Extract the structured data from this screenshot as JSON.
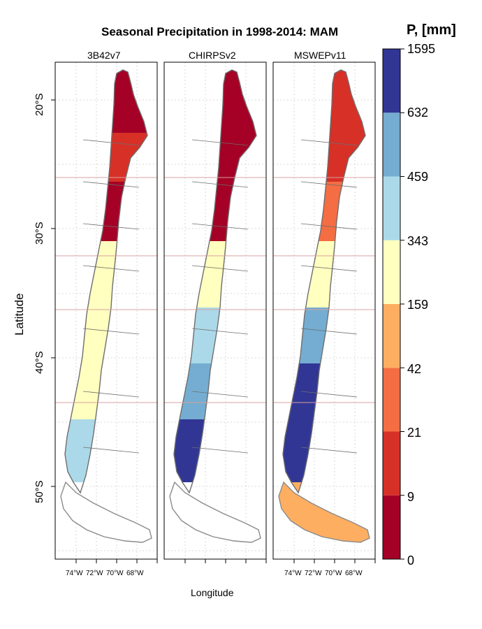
{
  "title": "Seasonal Precipitation in 1998-2014: MAM",
  "colorbar": {
    "unit_label": "P, [mm]",
    "breaks": [
      "0",
      "9",
      "21",
      "42",
      "159",
      "343",
      "459",
      "632",
      "1595"
    ],
    "colors": [
      "#a50026",
      "#d73027",
      "#f46d43",
      "#fdae61",
      "#ffffbf",
      "#abd9e9",
      "#74add1",
      "#313695"
    ]
  },
  "axes": {
    "xlabel": "Longitude",
    "ylabel": "Latitude",
    "lat_ticks": [
      "20°S",
      "30°S",
      "40°S",
      "50°S"
    ],
    "lon_ticks": [
      "74°W",
      "72°W",
      "70°W",
      "68°W"
    ]
  },
  "panels": [
    {
      "name": "3B42v7"
    },
    {
      "name": "CHIRPSv2"
    },
    {
      "name": "MSWEPv11"
    }
  ],
  "colors": {
    "outline": "#6e6e6e",
    "grid": "#d8d8d8",
    "region_line": "#d9a0a0",
    "no_data": "#8a8a8a"
  }
}
